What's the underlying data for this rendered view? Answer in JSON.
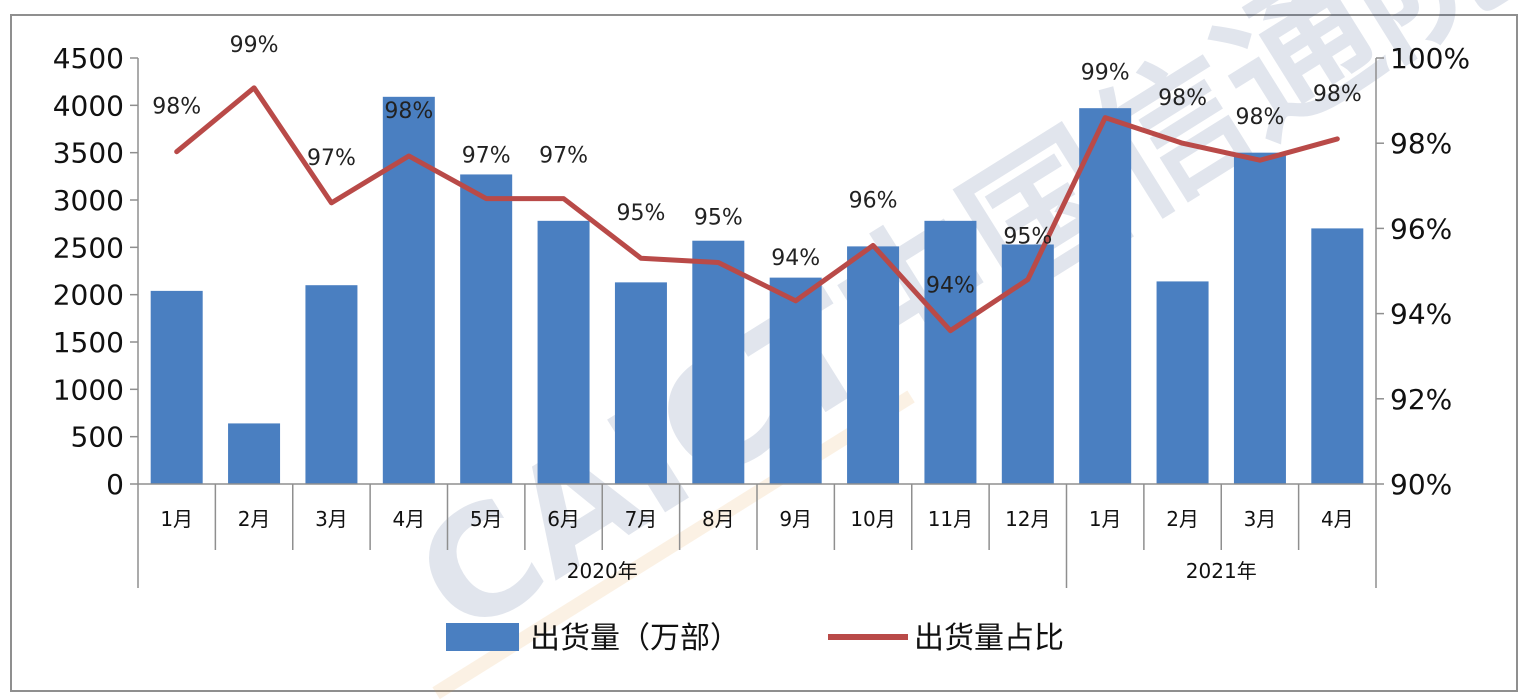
{
  "chart_data": {
    "type": "bar+line",
    "categories": [
      "1月",
      "2月",
      "3月",
      "4月",
      "5月",
      "6月",
      "7月",
      "8月",
      "9月",
      "10月",
      "11月",
      "12月",
      "1月",
      "2月",
      "3月",
      "4月"
    ],
    "year_groups": [
      {
        "label": "2020年",
        "start": 0,
        "end": 11
      },
      {
        "label": "2021年",
        "start": 12,
        "end": 15
      }
    ],
    "series": [
      {
        "name": "出货量（万部）",
        "type": "bar",
        "axis": "left",
        "color": "#4a7fc1",
        "values": [
          2040,
          640,
          2100,
          4090,
          3270,
          2780,
          2130,
          2570,
          2180,
          2510,
          2780,
          2530,
          3970,
          2140,
          3500,
          2700
        ]
      },
      {
        "name": "出货量占比",
        "type": "line",
        "axis": "right",
        "color": "#b94a48",
        "values": [
          97.8,
          99.3,
          96.6,
          97.7,
          96.7,
          96.7,
          95.3,
          95.2,
          94.3,
          95.6,
          93.6,
          94.8,
          98.6,
          98.0,
          97.6,
          98.1
        ],
        "labels": [
          "98%",
          "99%",
          "97%",
          "98%",
          "97%",
          "97%",
          "95%",
          "95%",
          "94%",
          "96%",
          "94%",
          "95%",
          "99%",
          "98%",
          "98%",
          "98%"
        ]
      }
    ],
    "left_axis": {
      "ylim": [
        0,
        4500
      ],
      "ticks": [
        "0",
        "500",
        "1000",
        "1500",
        "2000",
        "2500",
        "3000",
        "3500",
        "4000",
        "4500"
      ]
    },
    "right_axis": {
      "ylim": [
        90,
        100
      ],
      "ticks": [
        "90%",
        "92%",
        "94%",
        "96%",
        "98%",
        "100%"
      ]
    },
    "legend_position": "bottom",
    "grid": false,
    "watermark": "CAICT中国信通院"
  }
}
